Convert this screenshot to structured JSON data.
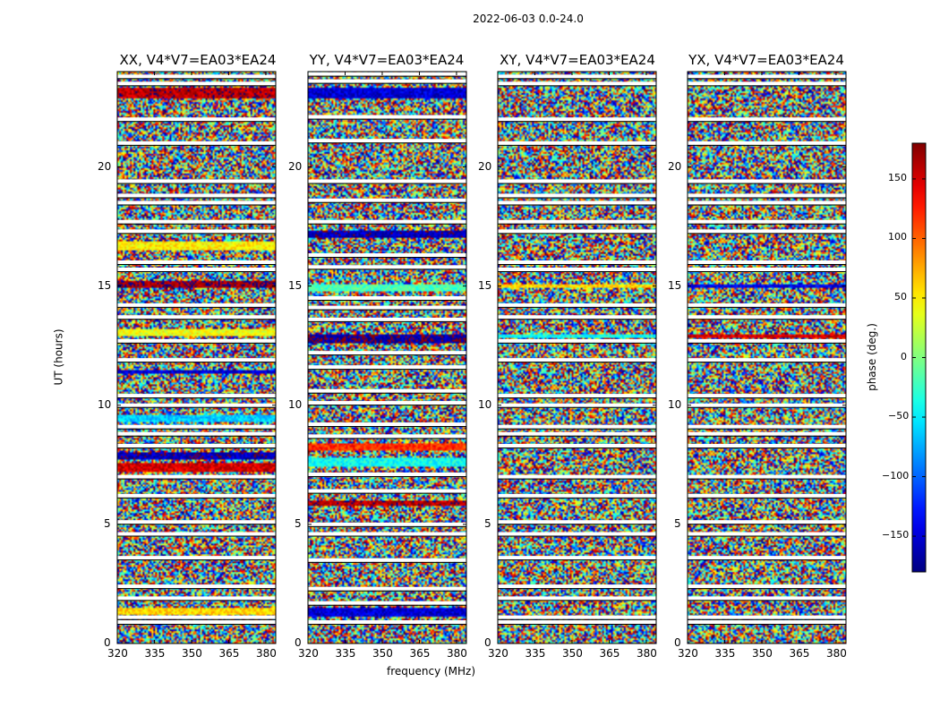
{
  "chart_data": {
    "type": "heatmap",
    "title": "2022-06-03 0.0-24.0",
    "xlabel": "frequency (MHz)",
    "ylabel": "UT (hours)",
    "xlim": [
      320,
      384
    ],
    "ylim": [
      0,
      24
    ],
    "x_ticks": [
      "320",
      "335",
      "350",
      "365",
      "380"
    ],
    "y_ticks": [
      "0",
      "5",
      "10",
      "15",
      "20"
    ],
    "colormap": "jet",
    "colorbar": {
      "label": "phase (deg.)",
      "range": [
        -180,
        180
      ],
      "ticks": [
        "−150",
        "−100",
        "−50",
        "0",
        "50",
        "100",
        "150"
      ],
      "tick_values": [
        -150,
        -100,
        -50,
        0,
        50,
        100,
        150
      ],
      "placement": "right"
    },
    "panels": [
      {
        "title": "XX, V4*V7=EA03*EA24",
        "coherent_bands": [
          {
            "t": [
              1.2,
              1.5
            ],
            "phase": 60
          },
          {
            "t": [
              7.2,
              7.6
            ],
            "phase": 150
          },
          {
            "t": [
              7.7,
              8.0
            ],
            "phase": -160
          },
          {
            "t": [
              9.3,
              9.6
            ],
            "phase": -60
          },
          {
            "t": [
              11.3,
              11.5
            ],
            "phase": -150
          },
          {
            "t": [
              12.9,
              13.2
            ],
            "phase": 40
          },
          {
            "t": [
              14.9,
              15.2
            ],
            "phase": 170
          },
          {
            "t": [
              16.5,
              16.9
            ],
            "phase": 50
          },
          {
            "t": [
              22.9,
              23.3
            ],
            "phase": 160
          }
        ],
        "flagged_times": [
          0.9,
          1.1,
          1.9,
          2.4,
          3.6,
          4.6,
          5.1,
          6.2,
          7.0,
          8.3,
          8.8,
          9.1,
          10.0,
          10.4,
          11.9,
          12.7,
          13.7,
          14.2,
          15.7,
          16.0,
          17.3,
          17.7,
          18.5,
          18.8,
          19.4,
          21.0,
          22.0,
          23.5,
          23.8
        ]
      },
      {
        "title": "YY, V4*V7=EA03*EA24",
        "coherent_bands": [
          {
            "t": [
              1.1,
              1.5
            ],
            "phase": -150
          },
          {
            "t": [
              5.8,
              6.0
            ],
            "phase": 160
          },
          {
            "t": [
              7.4,
              7.8
            ],
            "phase": -40
          },
          {
            "t": [
              8.1,
              8.4
            ],
            "phase": 120
          },
          {
            "t": [
              12.6,
              13.0
            ],
            "phase": -170
          },
          {
            "t": [
              14.8,
              15.1
            ],
            "phase": -20
          },
          {
            "t": [
              17.0,
              17.3
            ],
            "phase": -160
          },
          {
            "t": [
              22.9,
              23.3
            ],
            "phase": -150
          }
        ],
        "flagged_times": [
          0.9,
          1.7,
          2.3,
          3.5,
          4.6,
          5.0,
          6.4,
          7.1,
          8.7,
          9.2,
          10.1,
          10.6,
          11.6,
          12.2,
          13.6,
          14.1,
          14.5,
          15.8,
          16.3,
          17.7,
          18.6,
          19.4,
          21.1,
          22.1,
          23.6,
          23.9
        ]
      },
      {
        "title": "XY, V4*V7=EA03*EA24",
        "coherent_bands": [
          {
            "t": [
              14.9,
              15.1
            ],
            "phase": 60
          },
          {
            "t": [
              12.8,
              13.0
            ],
            "phase": -40
          }
        ],
        "flagged_times": [
          0.9,
          1.1,
          1.9,
          2.4,
          3.6,
          4.6,
          5.1,
          6.2,
          7.0,
          8.3,
          8.8,
          9.1,
          10.0,
          10.4,
          11.9,
          12.7,
          13.7,
          14.2,
          15.7,
          16.0,
          17.3,
          17.7,
          18.5,
          18.8,
          19.4,
          21.0,
          22.0,
          23.5,
          23.8
        ]
      },
      {
        "title": "YX, V4*V7=EA03*EA24",
        "coherent_bands": [
          {
            "t": [
              14.9,
              15.1
            ],
            "phase": -140
          },
          {
            "t": [
              12.8,
              13.0
            ],
            "phase": 150
          }
        ],
        "flagged_times": [
          0.9,
          1.1,
          1.9,
          2.4,
          3.6,
          4.6,
          5.1,
          6.2,
          7.0,
          8.3,
          8.8,
          9.1,
          10.0,
          10.4,
          11.9,
          12.7,
          13.7,
          14.2,
          15.7,
          16.0,
          17.3,
          17.7,
          18.5,
          18.8,
          19.4,
          21.0,
          22.0,
          23.5,
          23.8
        ]
      }
    ]
  }
}
